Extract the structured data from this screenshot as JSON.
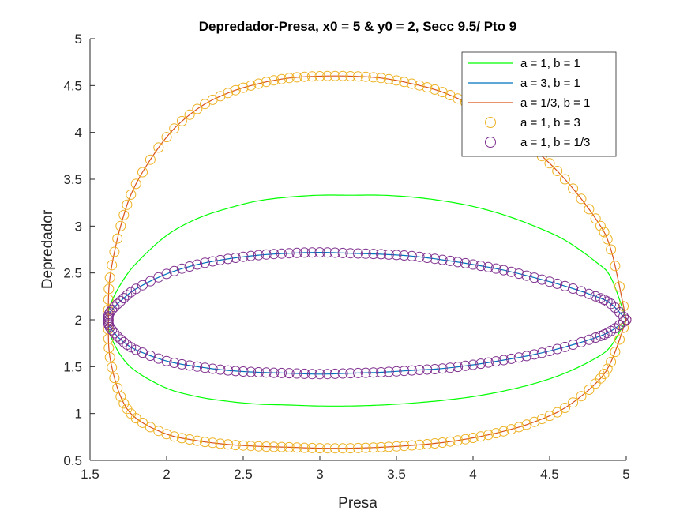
{
  "chart_data": {
    "type": "line",
    "title": "Depredador-Presa, x0 = 5 & y0 = 2, Secc 9.5/ Pto 9",
    "xlabel": "Presa",
    "ylabel": "Depredador",
    "xlim": [
      1.5,
      5
    ],
    "ylim": [
      0.5,
      5
    ],
    "xticks": [
      "1.5",
      "2",
      "2.5",
      "3",
      "3.5",
      "4",
      "4.5",
      "5"
    ],
    "yticks": [
      "0.5",
      "1",
      "1.5",
      "2",
      "2.5",
      "3",
      "3.5",
      "4",
      "4.5",
      "5"
    ],
    "grid": false,
    "legend_position": "top-right",
    "series": [
      {
        "name": "a = 1, b = 1",
        "style": "line",
        "color": "#00ff00",
        "x": [
          5.0,
          4.9,
          4.8,
          4.6,
          4.4,
          4.2,
          4.0,
          3.8,
          3.6,
          3.4,
          3.2,
          3.0,
          2.8,
          2.6,
          2.4,
          2.2,
          2.0,
          1.8,
          1.7,
          1.63,
          1.62,
          1.63,
          1.7,
          1.8,
          2.0,
          2.2,
          2.4,
          2.6,
          2.8,
          3.0,
          3.2,
          3.4,
          3.6,
          3.8,
          4.0,
          4.2,
          4.4,
          4.6,
          4.8,
          4.9,
          5.0
        ],
        "y": [
          2.0,
          2.45,
          2.62,
          2.85,
          3.0,
          3.12,
          3.21,
          3.27,
          3.31,
          3.33,
          3.33,
          3.33,
          3.31,
          3.27,
          3.19,
          3.08,
          2.9,
          2.6,
          2.38,
          2.15,
          2.0,
          1.85,
          1.62,
          1.45,
          1.27,
          1.18,
          1.13,
          1.1,
          1.09,
          1.08,
          1.08,
          1.09,
          1.11,
          1.14,
          1.18,
          1.24,
          1.32,
          1.43,
          1.59,
          1.72,
          2.0
        ]
      },
      {
        "name": "a = 3, b = 1",
        "style": "line",
        "color": "#0072bd",
        "x": [
          5.0,
          4.9,
          4.8,
          4.6,
          4.4,
          4.2,
          4.0,
          3.8,
          3.6,
          3.4,
          3.2,
          3.0,
          2.8,
          2.6,
          2.4,
          2.2,
          2.0,
          1.8,
          1.7,
          1.63,
          1.62,
          1.63,
          1.7,
          1.8,
          2.0,
          2.2,
          2.4,
          2.6,
          2.8,
          3.0,
          3.2,
          3.4,
          3.6,
          3.8,
          4.0,
          4.2,
          4.4,
          4.6,
          4.8,
          4.9,
          5.0
        ],
        "y": [
          2.0,
          2.17,
          2.25,
          2.36,
          2.45,
          2.53,
          2.59,
          2.64,
          2.68,
          2.7,
          2.71,
          2.72,
          2.71,
          2.69,
          2.65,
          2.59,
          2.49,
          2.33,
          2.2,
          2.08,
          2.0,
          1.92,
          1.79,
          1.68,
          1.56,
          1.5,
          1.46,
          1.44,
          1.43,
          1.42,
          1.43,
          1.44,
          1.46,
          1.48,
          1.52,
          1.57,
          1.63,
          1.71,
          1.81,
          1.88,
          2.0
        ]
      },
      {
        "name": "a = 1/3, b = 1",
        "style": "line",
        "color": "#d95319",
        "x": [
          5.0,
          4.9,
          4.8,
          4.6,
          4.4,
          4.2,
          4.0,
          3.8,
          3.6,
          3.4,
          3.2,
          3.0,
          2.8,
          2.6,
          2.4,
          2.2,
          2.0,
          1.8,
          1.7,
          1.63,
          1.62,
          1.63,
          1.7,
          1.8,
          2.0,
          2.2,
          2.4,
          2.6,
          2.8,
          3.0,
          3.2,
          3.4,
          3.6,
          3.8,
          4.0,
          4.2,
          4.4,
          4.6,
          4.8,
          4.9,
          5.0
        ],
        "y": [
          2.0,
          2.75,
          3.08,
          3.5,
          3.82,
          4.08,
          4.28,
          4.43,
          4.52,
          4.58,
          4.6,
          4.6,
          4.58,
          4.52,
          4.42,
          4.25,
          3.95,
          3.45,
          3.0,
          2.45,
          2.0,
          1.6,
          1.18,
          0.95,
          0.78,
          0.71,
          0.67,
          0.65,
          0.64,
          0.63,
          0.63,
          0.64,
          0.66,
          0.69,
          0.74,
          0.81,
          0.91,
          1.06,
          1.32,
          1.55,
          2.0
        ]
      },
      {
        "name": "a = 1, b = 3",
        "style": "marker",
        "color": "#edb120",
        "x": [
          5.0,
          4.9,
          4.8,
          4.6,
          4.4,
          4.2,
          4.0,
          3.8,
          3.6,
          3.4,
          3.2,
          3.0,
          2.8,
          2.6,
          2.4,
          2.2,
          2.0,
          1.8,
          1.7,
          1.63,
          1.62,
          1.63,
          1.7,
          1.8,
          2.0,
          2.2,
          2.4,
          2.6,
          2.8,
          3.0,
          3.2,
          3.4,
          3.6,
          3.8,
          4.0,
          4.2,
          4.4,
          4.6,
          4.8,
          4.9,
          5.0
        ],
        "y": [
          2.0,
          2.75,
          3.08,
          3.5,
          3.82,
          4.08,
          4.28,
          4.43,
          4.52,
          4.58,
          4.6,
          4.6,
          4.58,
          4.52,
          4.42,
          4.25,
          3.95,
          3.45,
          3.0,
          2.45,
          2.0,
          1.6,
          1.18,
          0.95,
          0.78,
          0.71,
          0.67,
          0.65,
          0.64,
          0.63,
          0.63,
          0.64,
          0.66,
          0.69,
          0.74,
          0.81,
          0.91,
          1.06,
          1.32,
          1.55,
          2.0
        ]
      },
      {
        "name": "a = 1, b = 1/3",
        "style": "marker",
        "color": "#7e2f8e",
        "x": [
          5.0,
          4.9,
          4.8,
          4.6,
          4.4,
          4.2,
          4.0,
          3.8,
          3.6,
          3.4,
          3.2,
          3.0,
          2.8,
          2.6,
          2.4,
          2.2,
          2.0,
          1.8,
          1.7,
          1.63,
          1.62,
          1.63,
          1.7,
          1.8,
          2.0,
          2.2,
          2.4,
          2.6,
          2.8,
          3.0,
          3.2,
          3.4,
          3.6,
          3.8,
          4.0,
          4.2,
          4.4,
          4.6,
          4.8,
          4.9,
          5.0
        ],
        "y": [
          2.0,
          2.17,
          2.25,
          2.36,
          2.45,
          2.53,
          2.59,
          2.64,
          2.68,
          2.7,
          2.71,
          2.72,
          2.71,
          2.69,
          2.65,
          2.59,
          2.49,
          2.33,
          2.2,
          2.08,
          2.0,
          1.92,
          1.79,
          1.68,
          1.56,
          1.5,
          1.46,
          1.44,
          1.43,
          1.42,
          1.43,
          1.44,
          1.46,
          1.48,
          1.52,
          1.57,
          1.63,
          1.71,
          1.81,
          1.88,
          2.0
        ]
      }
    ]
  }
}
